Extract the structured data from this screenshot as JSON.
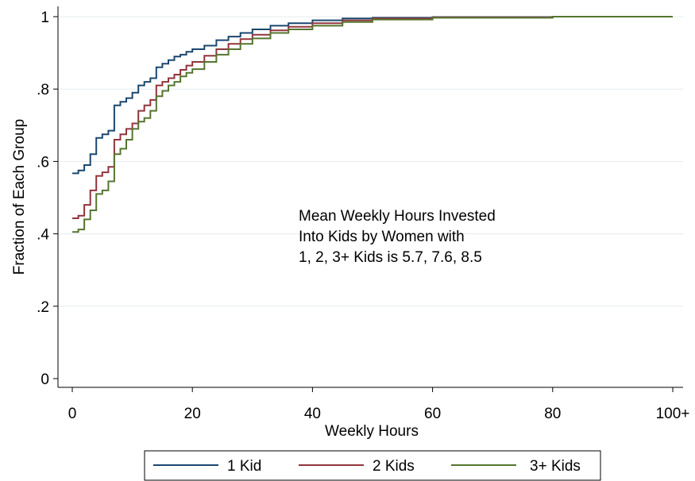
{
  "chart_data": {
    "type": "line",
    "step": true,
    "xlabel": "Weekly Hours",
    "ylabel": "Fraction of Each Group",
    "xlim": [
      0,
      100
    ],
    "ylim": [
      0,
      1
    ],
    "xticks": [
      {
        "value": 0,
        "label": "0"
      },
      {
        "value": 20,
        "label": "20"
      },
      {
        "value": 40,
        "label": "40"
      },
      {
        "value": 60,
        "label": "60"
      },
      {
        "value": 80,
        "label": "80"
      },
      {
        "value": 100,
        "label": "100+"
      }
    ],
    "yticks": [
      {
        "value": 0,
        "label": "0"
      },
      {
        "value": 0.2,
        "label": ".2"
      },
      {
        "value": 0.4,
        "label": ".4"
      },
      {
        "value": 0.6,
        "label": ".6"
      },
      {
        "value": 0.8,
        "label": ".8"
      },
      {
        "value": 1,
        "label": "1"
      }
    ],
    "grid": "horizontal",
    "legend_position": "bottom",
    "annotation": [
      "Mean Weekly Hours Invested",
      "Into Kids by Women with",
      "1, 2, 3+ Kids is 5.7, 7.6, 8.5"
    ],
    "series": [
      {
        "name": "1 Kid",
        "color": "#1a476f",
        "points": [
          [
            0,
            0.567
          ],
          [
            1,
            0.575
          ],
          [
            2,
            0.59
          ],
          [
            3,
            0.62
          ],
          [
            4,
            0.665
          ],
          [
            5,
            0.675
          ],
          [
            6,
            0.685
          ],
          [
            7,
            0.755
          ],
          [
            8,
            0.765
          ],
          [
            9,
            0.775
          ],
          [
            10,
            0.79
          ],
          [
            11,
            0.81
          ],
          [
            12,
            0.82
          ],
          [
            13,
            0.83
          ],
          [
            14,
            0.86
          ],
          [
            15,
            0.87
          ],
          [
            16,
            0.88
          ],
          [
            17,
            0.89
          ],
          [
            18,
            0.895
          ],
          [
            19,
            0.903
          ],
          [
            20,
            0.91
          ],
          [
            22,
            0.92
          ],
          [
            24,
            0.935
          ],
          [
            26,
            0.945
          ],
          [
            28,
            0.955
          ],
          [
            30,
            0.965
          ],
          [
            33,
            0.975
          ],
          [
            36,
            0.982
          ],
          [
            40,
            0.99
          ],
          [
            45,
            0.995
          ],
          [
            50,
            0.997
          ],
          [
            60,
            0.999
          ],
          [
            80,
            1.0
          ],
          [
            100,
            1.0
          ]
        ]
      },
      {
        "name": "2 Kids",
        "color": "#90353b",
        "points": [
          [
            0,
            0.443
          ],
          [
            1,
            0.45
          ],
          [
            2,
            0.48
          ],
          [
            3,
            0.52
          ],
          [
            4,
            0.56
          ],
          [
            5,
            0.57
          ],
          [
            6,
            0.585
          ],
          [
            7,
            0.66
          ],
          [
            8,
            0.675
          ],
          [
            9,
            0.69
          ],
          [
            10,
            0.705
          ],
          [
            11,
            0.74
          ],
          [
            12,
            0.755
          ],
          [
            13,
            0.77
          ],
          [
            14,
            0.81
          ],
          [
            15,
            0.82
          ],
          [
            16,
            0.83
          ],
          [
            17,
            0.84
          ],
          [
            18,
            0.853
          ],
          [
            19,
            0.865
          ],
          [
            20,
            0.875
          ],
          [
            22,
            0.892
          ],
          [
            24,
            0.91
          ],
          [
            26,
            0.925
          ],
          [
            28,
            0.938
          ],
          [
            30,
            0.95
          ],
          [
            33,
            0.962
          ],
          [
            36,
            0.972
          ],
          [
            40,
            0.982
          ],
          [
            45,
            0.99
          ],
          [
            50,
            0.995
          ],
          [
            60,
            0.998
          ],
          [
            80,
            1.0
          ],
          [
            100,
            1.0
          ]
        ]
      },
      {
        "name": "3+ Kids",
        "color": "#55752f",
        "points": [
          [
            0,
            0.405
          ],
          [
            1,
            0.412
          ],
          [
            2,
            0.44
          ],
          [
            3,
            0.465
          ],
          [
            4,
            0.51
          ],
          [
            5,
            0.52
          ],
          [
            6,
            0.545
          ],
          [
            7,
            0.62
          ],
          [
            8,
            0.635
          ],
          [
            9,
            0.66
          ],
          [
            10,
            0.69
          ],
          [
            11,
            0.71
          ],
          [
            12,
            0.72
          ],
          [
            13,
            0.74
          ],
          [
            14,
            0.78
          ],
          [
            15,
            0.795
          ],
          [
            16,
            0.81
          ],
          [
            17,
            0.82
          ],
          [
            18,
            0.835
          ],
          [
            19,
            0.845
          ],
          [
            20,
            0.855
          ],
          [
            22,
            0.875
          ],
          [
            24,
            0.895
          ],
          [
            26,
            0.91
          ],
          [
            28,
            0.925
          ],
          [
            30,
            0.94
          ],
          [
            33,
            0.955
          ],
          [
            36,
            0.965
          ],
          [
            40,
            0.975
          ],
          [
            45,
            0.985
          ],
          [
            50,
            0.992
          ],
          [
            60,
            0.997
          ],
          [
            80,
            1.0
          ],
          [
            100,
            1.0
          ]
        ]
      }
    ]
  }
}
